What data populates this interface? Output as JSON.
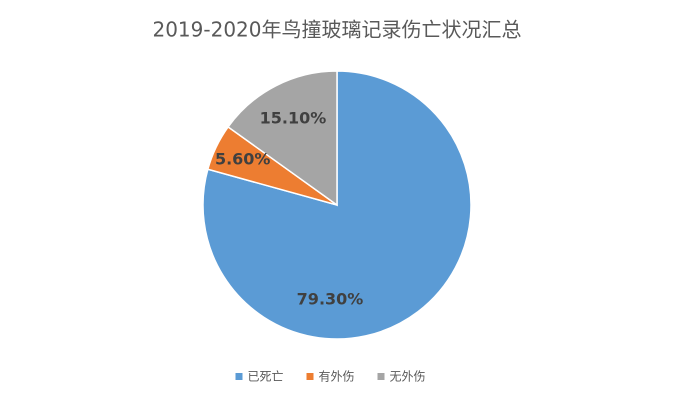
{
  "chart_data": {
    "type": "pie",
    "title": "2019-2020年鸟撞玻璃记录伤亡状况汇总",
    "categories": [
      "已死亡",
      "有外伤",
      "无外伤"
    ],
    "values": [
      79.3,
      5.6,
      15.1
    ],
    "value_labels": [
      "79.30%",
      "5.60%",
      "15.10%"
    ],
    "colors": [
      "#5b9bd5",
      "#ed7d31",
      "#a5a5a5"
    ],
    "legend": "bottom"
  }
}
